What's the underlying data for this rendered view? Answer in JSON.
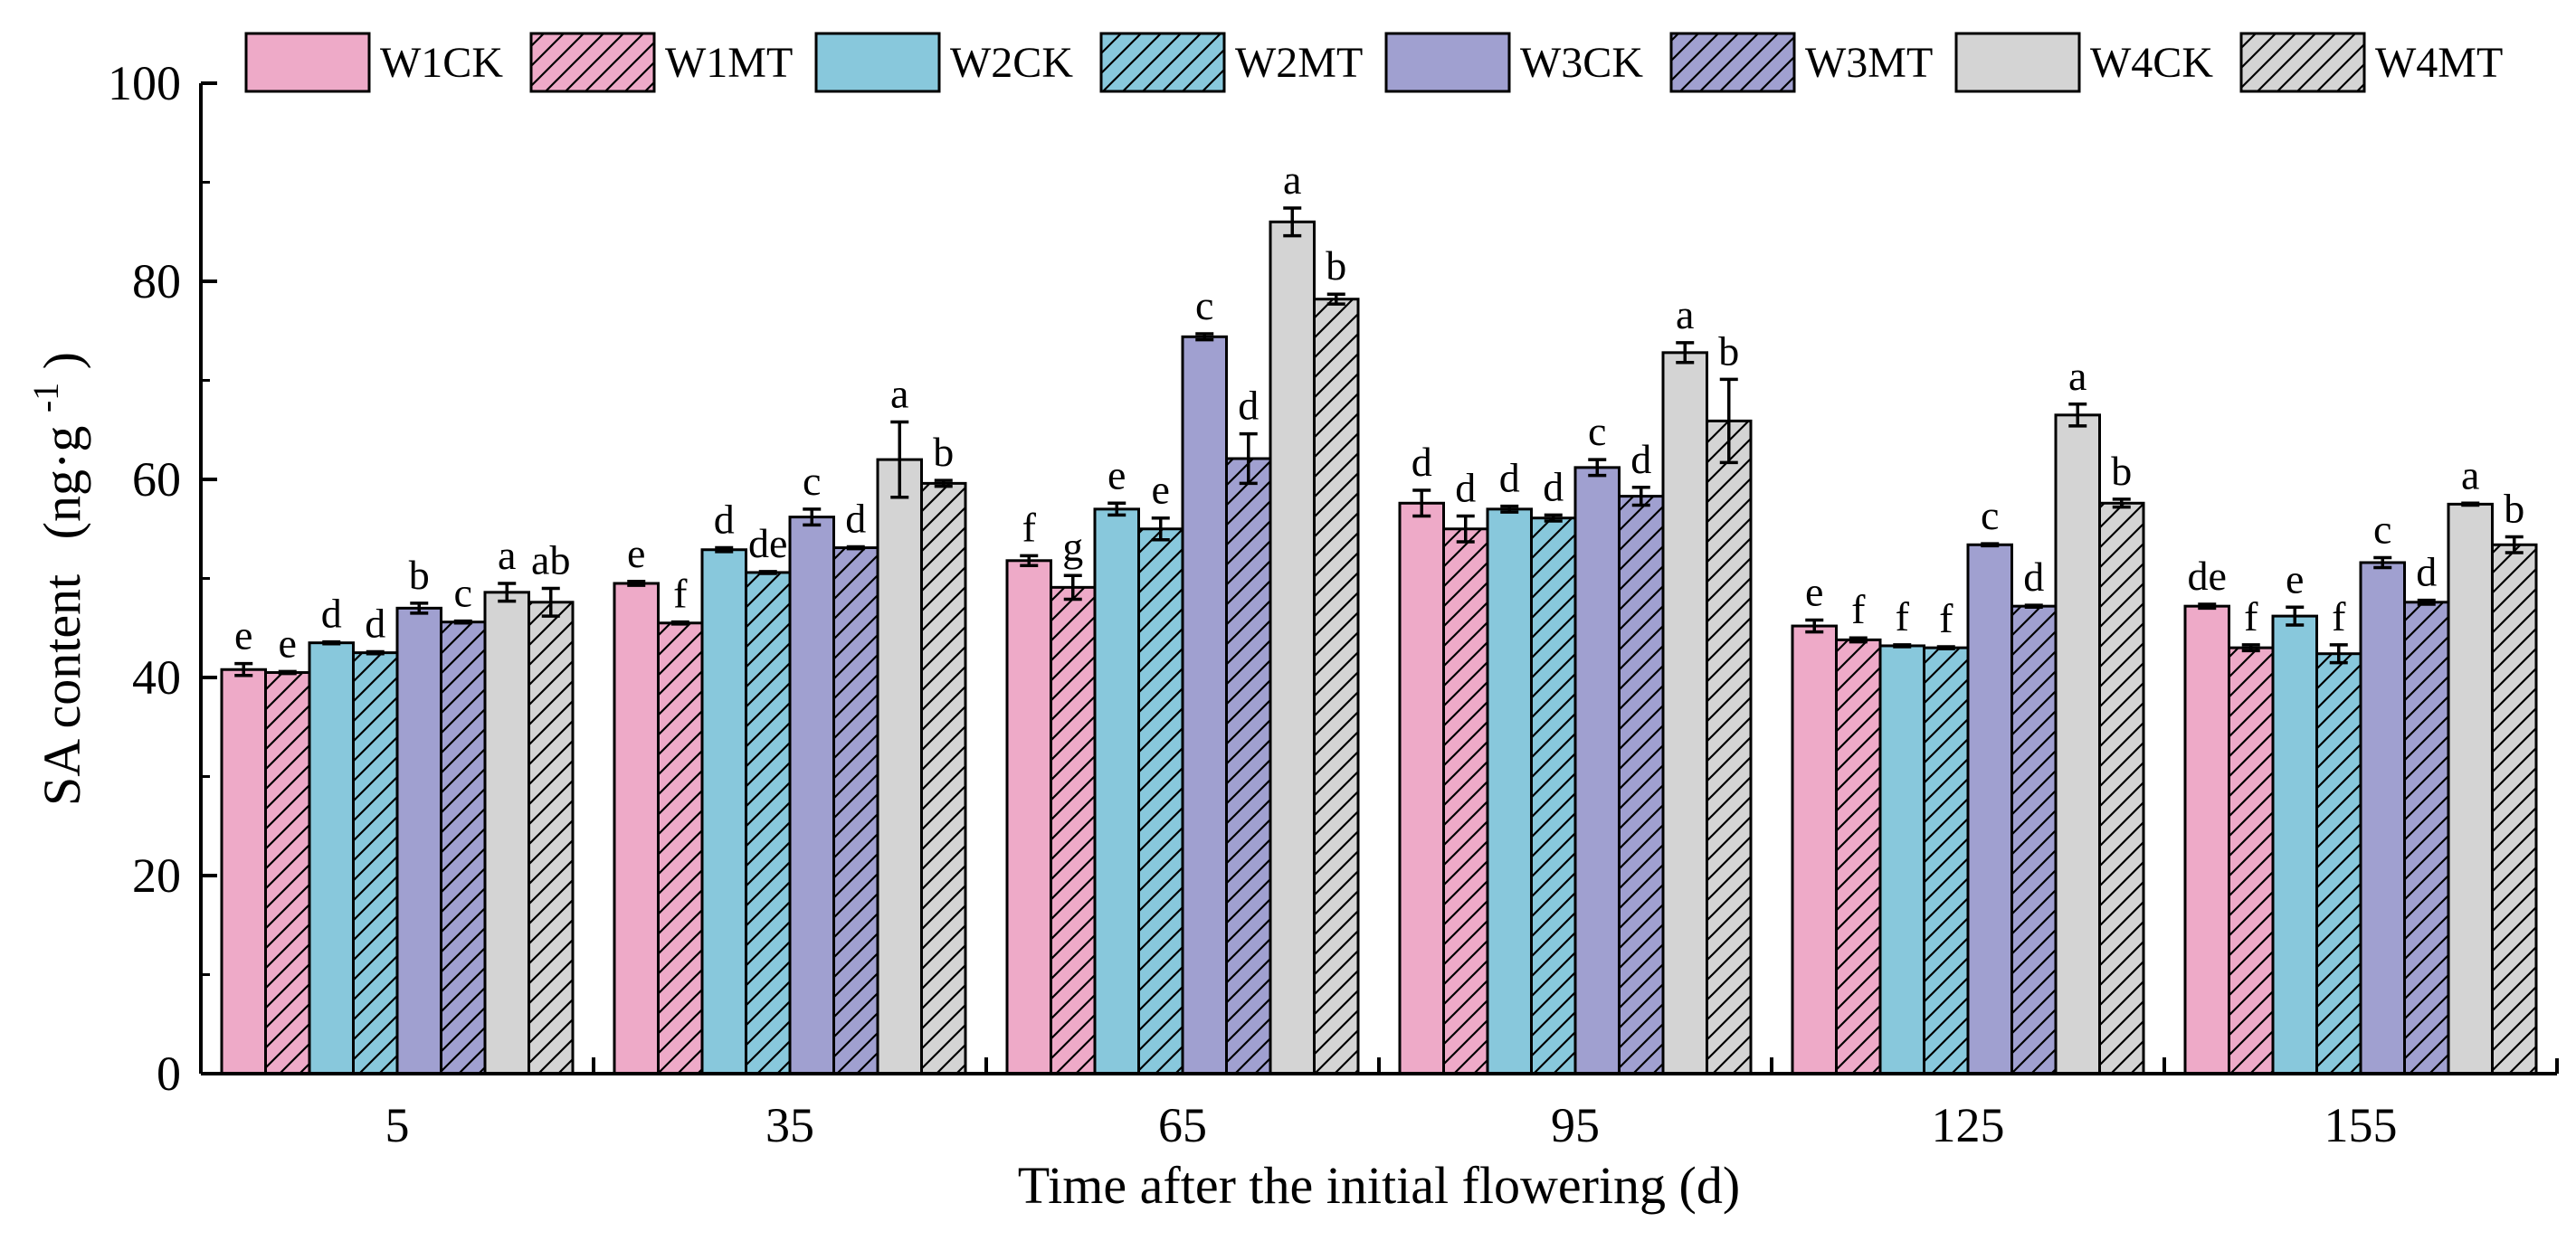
{
  "chart_data": {
    "type": "bar",
    "xlabel": "Time after the initial flowering (d)",
    "ylabel_main": "SA content",
    "ylabel_unit": "(ng·g",
    "ylabel_sup": "-1",
    "ylabel_close": ")",
    "ylim": [
      0,
      100
    ],
    "yticks": [
      "0",
      "20",
      "40",
      "60",
      "80",
      "100"
    ],
    "categories": [
      "5",
      "35",
      "65",
      "95",
      "125",
      "155"
    ],
    "legend_position": "top",
    "grid": false,
    "series": [
      {
        "name": "W1CK",
        "color": "#eeaac8",
        "hatched": false,
        "values": [
          40.8,
          49.5,
          51.8,
          57.6,
          45.2,
          47.2
        ],
        "errors": [
          0.6,
          0.2,
          0.5,
          1.3,
          0.6,
          0.2
        ],
        "labels": [
          "e",
          "e",
          "f",
          "d",
          "e",
          "de"
        ]
      },
      {
        "name": "W1MT",
        "color": "#eeaac8",
        "hatched": true,
        "values": [
          40.5,
          45.5,
          49.1,
          55.0,
          43.8,
          43.0
        ],
        "errors": [
          0.1,
          0.1,
          1.2,
          1.3,
          0.2,
          0.3
        ],
        "labels": [
          "e",
          "f",
          "g",
          "d",
          "f",
          "f"
        ]
      },
      {
        "name": "W2CK",
        "color": "#88c8dc",
        "hatched": false,
        "values": [
          43.5,
          52.9,
          57.0,
          57.0,
          43.2,
          46.2
        ],
        "errors": [
          0.1,
          0.2,
          0.6,
          0.3,
          0.1,
          0.9
        ],
        "labels": [
          "d",
          "d",
          "e",
          "d",
          "f",
          "e"
        ]
      },
      {
        "name": "W2MT",
        "color": "#88c8dc",
        "hatched": true,
        "values": [
          42.5,
          50.6,
          55.0,
          56.1,
          43.0,
          42.4
        ],
        "errors": [
          0.1,
          0.1,
          1.1,
          0.3,
          0.1,
          0.9
        ],
        "labels": [
          "d",
          "de",
          "e",
          "d",
          "f",
          "f"
        ]
      },
      {
        "name": "W3CK",
        "color": "#a0a0d0",
        "hatched": false,
        "values": [
          47.0,
          56.2,
          74.4,
          61.2,
          53.4,
          51.6
        ],
        "errors": [
          0.5,
          0.8,
          0.3,
          0.8,
          0.1,
          0.5
        ],
        "labels": [
          "b",
          "c",
          "c",
          "c",
          "c",
          "c"
        ]
      },
      {
        "name": "W3MT",
        "color": "#a0a0d0",
        "hatched": true,
        "values": [
          45.6,
          53.1,
          62.1,
          58.3,
          47.2,
          47.6
        ],
        "errors": [
          0.1,
          0.1,
          2.5,
          0.9,
          0.1,
          0.2
        ],
        "labels": [
          "c",
          "d",
          "d",
          "d",
          "d",
          "d"
        ]
      },
      {
        "name": "W4CK",
        "color": "#d4d4d4",
        "hatched": false,
        "values": [
          48.6,
          62.0,
          86.0,
          72.8,
          66.5,
          57.5
        ],
        "errors": [
          0.9,
          3.8,
          1.4,
          1.0,
          1.1,
          0.1
        ],
        "labels": [
          "a",
          "a",
          "a",
          "a",
          "a",
          "a"
        ]
      },
      {
        "name": "W4MT",
        "color": "#d4d4d4",
        "hatched": true,
        "values": [
          47.6,
          59.6,
          78.2,
          65.9,
          57.6,
          53.4
        ],
        "errors": [
          1.4,
          0.3,
          0.5,
          4.2,
          0.4,
          0.8
        ],
        "labels": [
          "ab",
          "b",
          "b",
          "b",
          "b",
          "b"
        ]
      }
    ]
  }
}
